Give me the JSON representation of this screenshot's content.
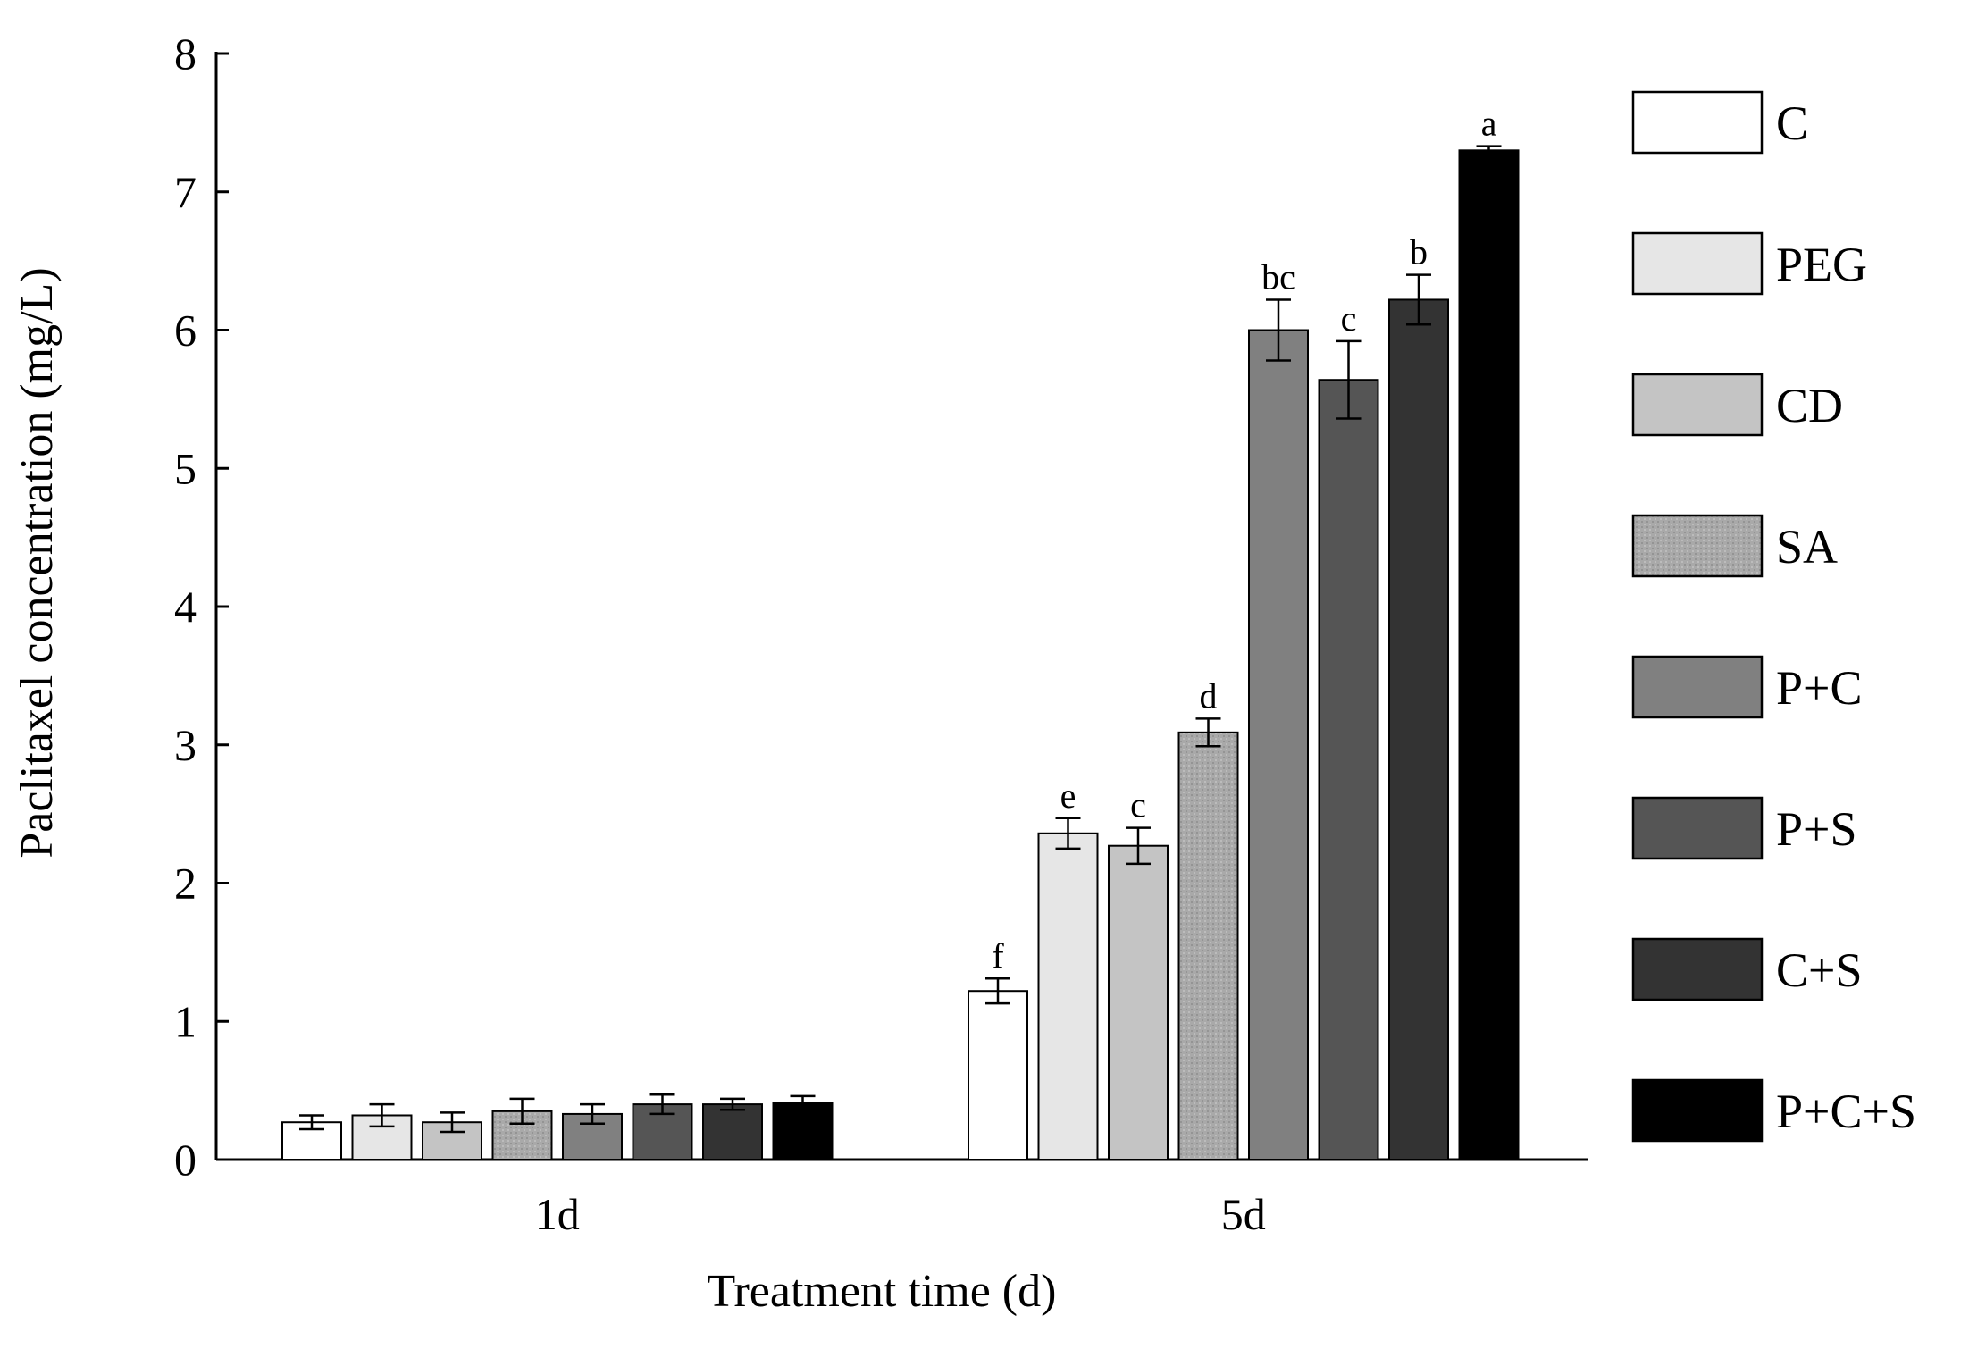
{
  "chart_data": {
    "type": "bar",
    "xlabel": "Treatment time (d)",
    "ylabel": "Paclitaxel concentration (mg/L)",
    "ylim": [
      0,
      8
    ],
    "yticks": [
      "0",
      "1",
      "2",
      "3",
      "4",
      "5",
      "6",
      "7",
      "8"
    ],
    "categories": [
      "1d",
      "5d"
    ],
    "legend_position": "right",
    "series": [
      {
        "name": "C",
        "color": "#ffffff",
        "values": [
          0.27,
          1.22
        ],
        "errors": [
          0.05,
          0.09
        ],
        "labels": [
          "",
          "f"
        ]
      },
      {
        "name": "PEG",
        "color": "#e6e6e6",
        "values": [
          0.32,
          2.36
        ],
        "errors": [
          0.08,
          0.11
        ],
        "labels": [
          "",
          "e"
        ]
      },
      {
        "name": "CD",
        "color": "#c4c4c4",
        "values": [
          0.27,
          2.27
        ],
        "errors": [
          0.07,
          0.13
        ],
        "labels": [
          "",
          "c"
        ]
      },
      {
        "name": "SA",
        "color": "#a9a9a9",
        "values": [
          0.35,
          3.09
        ],
        "errors": [
          0.09,
          0.1
        ],
        "labels": [
          "",
          "d"
        ]
      },
      {
        "name": "P+C",
        "color": "#808080",
        "values": [
          0.33,
          6.0
        ],
        "errors": [
          0.07,
          0.22
        ],
        "labels": [
          "",
          "bc"
        ]
      },
      {
        "name": "P+S",
        "color": "#555555",
        "values": [
          0.4,
          5.64
        ],
        "errors": [
          0.07,
          0.28
        ],
        "labels": [
          "",
          "c"
        ]
      },
      {
        "name": "C+S",
        "color": "#333333",
        "values": [
          0.4,
          6.22
        ],
        "errors": [
          0.04,
          0.18
        ],
        "labels": [
          "",
          "b"
        ]
      },
      {
        "name": "P+C+S",
        "color": "#000000",
        "values": [
          0.41,
          7.3
        ],
        "errors": [
          0.05,
          0.03
        ],
        "labels": [
          "",
          "a"
        ]
      }
    ]
  }
}
